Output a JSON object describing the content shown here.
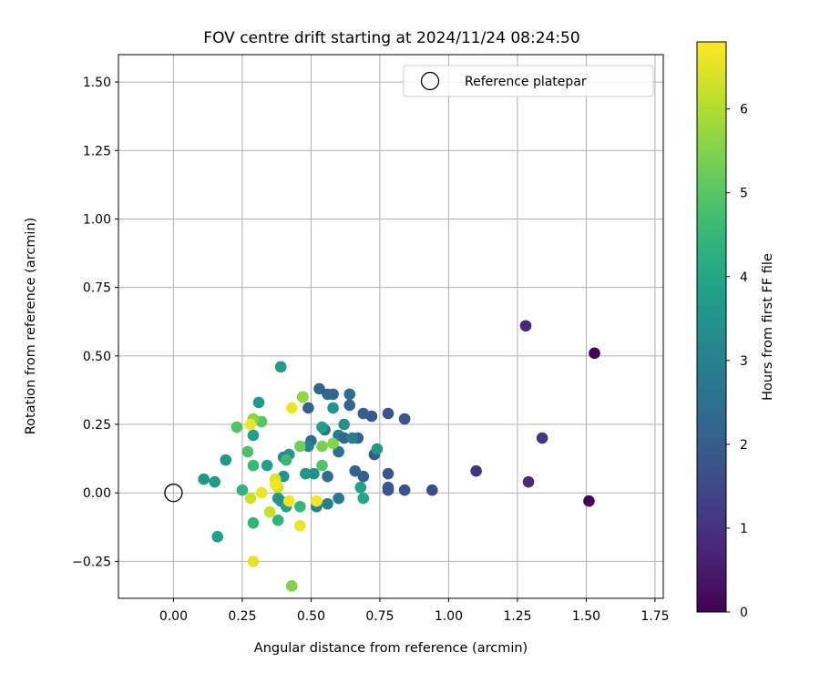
{
  "chart_data": {
    "type": "scatter",
    "title": "FOV centre drift starting at 2024/11/24 08:24:50",
    "xlabel": "Angular distance from reference (arcmin)",
    "ylabel": "Rotation from reference (arcmin)",
    "xlim": [
      -0.2,
      1.78
    ],
    "ylim": [
      -0.385,
      1.6
    ],
    "xticks": [
      0.0,
      0.25,
      0.5,
      0.75,
      1.0,
      1.25,
      1.5,
      1.75
    ],
    "xtick_labels": [
      "0.00",
      "0.25",
      "0.50",
      "0.75",
      "1.00",
      "1.25",
      "1.50",
      "1.75"
    ],
    "yticks": [
      -0.25,
      0.0,
      0.25,
      0.5,
      0.75,
      1.0,
      1.25,
      1.5
    ],
    "ytick_labels": [
      "−0.25",
      "0.00",
      "0.25",
      "0.50",
      "0.75",
      "1.00",
      "1.25",
      "1.50"
    ],
    "grid": true,
    "legend": {
      "placement": "top-right",
      "label": "Reference platepar",
      "marker": "open-circle"
    },
    "reference_point": {
      "x": 0.0,
      "y": 0.0
    },
    "colorbar": {
      "label": "Hours from first FF file",
      "colormap": "viridis",
      "range": [
        0,
        6.8
      ],
      "ticks": [
        0,
        1,
        2,
        3,
        4,
        5,
        6
      ],
      "tick_labels": [
        "0",
        "1",
        "2",
        "3",
        "4",
        "5",
        "6"
      ]
    },
    "points": [
      {
        "x": 1.53,
        "y": 0.51,
        "hours": 0.05
      },
      {
        "x": 1.51,
        "y": -0.03,
        "hours": 0.1
      },
      {
        "x": 1.28,
        "y": 0.61,
        "hours": 0.75
      },
      {
        "x": 1.29,
        "y": 0.04,
        "hours": 0.85
      },
      {
        "x": 1.34,
        "y": 0.2,
        "hours": 1.1
      },
      {
        "x": 1.1,
        "y": 0.08,
        "hours": 1.05
      },
      {
        "x": 0.94,
        "y": 0.01,
        "hours": 1.6
      },
      {
        "x": 0.84,
        "y": 0.27,
        "hours": 1.7
      },
      {
        "x": 0.84,
        "y": 0.01,
        "hours": 1.75
      },
      {
        "x": 0.78,
        "y": 0.29,
        "hours": 1.8
      },
      {
        "x": 0.78,
        "y": 0.07,
        "hours": 1.8
      },
      {
        "x": 0.78,
        "y": 0.01,
        "hours": 1.85
      },
      {
        "x": 0.78,
        "y": 0.02,
        "hours": 1.9
      },
      {
        "x": 0.72,
        "y": 0.28,
        "hours": 1.9
      },
      {
        "x": 0.69,
        "y": 0.29,
        "hours": 2.0
      },
      {
        "x": 0.73,
        "y": 0.14,
        "hours": 2.0
      },
      {
        "x": 0.69,
        "y": 0.06,
        "hours": 2.05
      },
      {
        "x": 0.66,
        "y": 0.08,
        "hours": 2.1
      },
      {
        "x": 0.67,
        "y": 0.2,
        "hours": 2.15
      },
      {
        "x": 0.64,
        "y": 0.32,
        "hours": 2.2
      },
      {
        "x": 0.64,
        "y": 0.36,
        "hours": 2.4
      },
      {
        "x": 0.58,
        "y": 0.36,
        "hours": 2.2
      },
      {
        "x": 0.56,
        "y": 0.36,
        "hours": 2.3
      },
      {
        "x": 0.53,
        "y": 0.38,
        "hours": 2.2
      },
      {
        "x": 0.49,
        "y": 0.31,
        "hours": 2.1
      },
      {
        "x": 0.47,
        "y": 0.35,
        "hours": 2.0
      },
      {
        "x": 0.5,
        "y": 0.19,
        "hours": 2.4
      },
      {
        "x": 0.55,
        "y": 0.23,
        "hours": 2.6
      },
      {
        "x": 0.6,
        "y": 0.15,
        "hours": 2.5
      },
      {
        "x": 0.6,
        "y": 0.21,
        "hours": 2.8
      },
      {
        "x": 0.62,
        "y": 0.2,
        "hours": 2.3
      },
      {
        "x": 0.65,
        "y": 0.2,
        "hours": 2.9
      },
      {
        "x": 0.56,
        "y": 0.06,
        "hours": 2.4
      },
      {
        "x": 0.56,
        "y": -0.04,
        "hours": 3.0
      },
      {
        "x": 0.6,
        "y": -0.02,
        "hours": 2.7
      },
      {
        "x": 0.52,
        "y": -0.05,
        "hours": 3.0
      },
      {
        "x": 0.51,
        "y": 0.07,
        "hours": 3.4
      },
      {
        "x": 0.48,
        "y": 0.07,
        "hours": 3.6
      },
      {
        "x": 0.49,
        "y": 0.17,
        "hours": 3.1
      },
      {
        "x": 0.58,
        "y": 0.31,
        "hours": 3.5
      },
      {
        "x": 0.62,
        "y": 0.25,
        "hours": 3.4
      },
      {
        "x": 0.74,
        "y": 0.16,
        "hours": 3.6
      },
      {
        "x": 0.68,
        "y": 0.02,
        "hours": 3.8
      },
      {
        "x": 0.69,
        "y": -0.02,
        "hours": 4.0
      },
      {
        "x": 0.54,
        "y": 0.24,
        "hours": 3.8
      },
      {
        "x": 0.39,
        "y": 0.46,
        "hours": 3.7
      },
      {
        "x": 0.42,
        "y": 0.14,
        "hours": 3.6
      },
      {
        "x": 0.4,
        "y": 0.13,
        "hours": 3.3
      },
      {
        "x": 0.4,
        "y": 0.06,
        "hours": 3.5
      },
      {
        "x": 0.39,
        "y": -0.03,
        "hours": 3.7
      },
      {
        "x": 0.41,
        "y": -0.05,
        "hours": 3.9
      },
      {
        "x": 0.38,
        "y": -0.02,
        "hours": 3.5
      },
      {
        "x": 0.34,
        "y": 0.1,
        "hours": 3.8
      },
      {
        "x": 0.31,
        "y": 0.33,
        "hours": 3.7
      },
      {
        "x": 0.29,
        "y": 0.21,
        "hours": 3.8
      },
      {
        "x": 0.19,
        "y": 0.12,
        "hours": 3.6
      },
      {
        "x": 0.11,
        "y": 0.05,
        "hours": 3.6
      },
      {
        "x": 0.15,
        "y": 0.04,
        "hours": 3.7
      },
      {
        "x": 0.16,
        "y": -0.16,
        "hours": 3.8
      },
      {
        "x": 0.25,
        "y": 0.01,
        "hours": 4.4
      },
      {
        "x": 0.29,
        "y": -0.11,
        "hours": 4.4
      },
      {
        "x": 0.38,
        "y": -0.1,
        "hours": 4.4
      },
      {
        "x": 0.46,
        "y": -0.05,
        "hours": 4.5
      },
      {
        "x": 0.41,
        "y": 0.12,
        "hours": 4.6
      },
      {
        "x": 0.29,
        "y": 0.1,
        "hours": 4.6
      },
      {
        "x": 0.27,
        "y": 0.15,
        "hours": 4.8
      },
      {
        "x": 0.23,
        "y": 0.24,
        "hours": 4.9
      },
      {
        "x": 0.32,
        "y": 0.26,
        "hours": 5.0
      },
      {
        "x": 0.54,
        "y": 0.1,
        "hours": 4.9
      },
      {
        "x": 0.46,
        "y": 0.17,
        "hours": 5.3
      },
      {
        "x": 0.54,
        "y": 0.17,
        "hours": 5.4
      },
      {
        "x": 0.58,
        "y": 0.18,
        "hours": 5.5
      },
      {
        "x": 0.29,
        "y": 0.27,
        "hours": 5.6
      },
      {
        "x": 0.47,
        "y": 0.35,
        "hours": 5.7
      },
      {
        "x": 0.43,
        "y": -0.34,
        "hours": 5.5
      },
      {
        "x": 0.35,
        "y": -0.07,
        "hours": 6.2
      },
      {
        "x": 0.28,
        "y": -0.02,
        "hours": 6.3
      },
      {
        "x": 0.38,
        "y": 0.02,
        "hours": 6.3
      },
      {
        "x": 0.37,
        "y": 0.05,
        "hours": 6.4
      },
      {
        "x": 0.28,
        "y": 0.25,
        "hours": 6.6
      },
      {
        "x": 0.32,
        "y": 0.0,
        "hours": 6.6
      },
      {
        "x": 0.37,
        "y": 0.03,
        "hours": 6.7
      },
      {
        "x": 0.42,
        "y": -0.03,
        "hours": 6.7
      },
      {
        "x": 0.46,
        "y": -0.12,
        "hours": 6.6
      },
      {
        "x": 0.52,
        "y": -0.03,
        "hours": 6.7
      },
      {
        "x": 0.43,
        "y": 0.31,
        "hours": 6.6
      },
      {
        "x": 0.29,
        "y": -0.25,
        "hours": 6.5
      }
    ]
  }
}
